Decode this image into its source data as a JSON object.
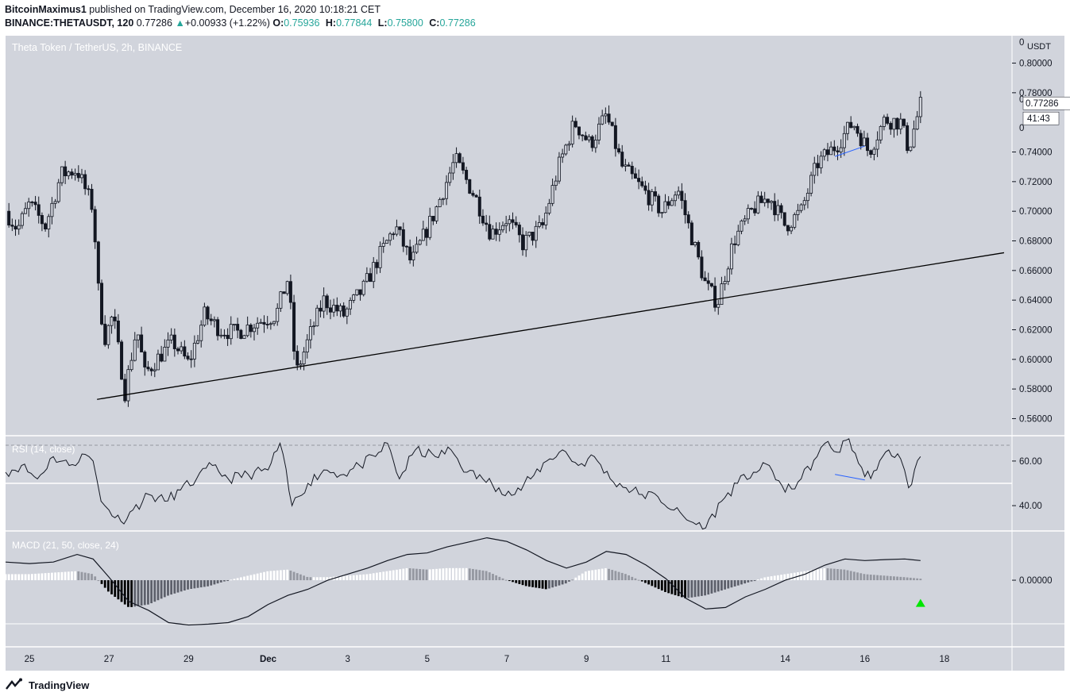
{
  "header": {
    "author": "BitcoinMaximus1",
    "published": "published on TradingView.com, December 16, 2020 10:18:21 CET",
    "symbol": "BINANCE:THETAUSDT, 120",
    "last": "0.77286",
    "change": "+0.00933 (+1.22%)",
    "open_label": "O:",
    "open": "0.75936",
    "high_label": "H:",
    "high": "0.77844",
    "low_label": "L:",
    "low": "0.75800",
    "close_label": "C:",
    "close": "0.77286"
  },
  "colors": {
    "pane_bg": "#d1d4dc",
    "candle": "#131722",
    "up_text": "#26a69a",
    "trendline": "#000000",
    "divergence": "#2962ff",
    "arrow": "#00e600"
  },
  "footer": {
    "brand": "TradingView",
    "icon": "tradingview-logo-icon"
  },
  "chart_data": [
    {
      "type": "candlestick",
      "title": "Theta Token / TetherUS, 2h, BINANCE",
      "currency": "USDT",
      "y_ticks": [
        "0.80000",
        "0.78000",
        "0.74000",
        "0.72000",
        "0.70000",
        "0.68000",
        "0.66000",
        "0.64000",
        "0.62000",
        "0.60000",
        "0.58000",
        "0.56000"
      ],
      "ylim": [
        0.549,
        0.8185
      ],
      "last_price_label": "0.77286",
      "countdown_label": "41:43",
      "axis_fragments": [
        "0",
        "0",
        "0"
      ],
      "grid": false,
      "x_ticks": [
        "25",
        "27",
        "29",
        "Dec",
        "3",
        "5",
        "7",
        "9",
        "11",
        "14",
        "16",
        "18"
      ],
      "x_tick_days": [
        -6,
        -4,
        -2,
        0,
        2,
        4,
        6,
        8,
        10,
        13,
        15,
        17
      ],
      "x_unit": "days from Dec 1, 2020",
      "xlim": [
        -6.6,
        18.7
      ],
      "swing_path": [
        [
          -6.6,
          0.7
        ],
        [
          -6.3,
          0.688
        ],
        [
          -6.0,
          0.705
        ],
        [
          -5.6,
          0.69
        ],
        [
          -5.2,
          0.725
        ],
        [
          -4.8,
          0.728
        ],
        [
          -4.4,
          0.702
        ],
        [
          -4.25,
          0.64
        ],
        [
          -4.1,
          0.615
        ],
        [
          -3.9,
          0.63
        ],
        [
          -3.6,
          0.578
        ],
        [
          -3.3,
          0.622
        ],
        [
          -3.1,
          0.59
        ],
        [
          -2.8,
          0.6
        ],
        [
          -2.4,
          0.612
        ],
        [
          -2.0,
          0.597
        ],
        [
          -1.6,
          0.63
        ],
        [
          -1.2,
          0.62
        ],
        [
          -0.8,
          0.618
        ],
        [
          -0.3,
          0.625
        ],
        [
          0.2,
          0.63
        ],
        [
          0.5,
          0.655
        ],
        [
          0.7,
          0.59
        ],
        [
          1.1,
          0.62
        ],
        [
          1.4,
          0.64
        ],
        [
          1.9,
          0.63
        ],
        [
          2.4,
          0.648
        ],
        [
          2.8,
          0.67
        ],
        [
          3.2,
          0.69
        ],
        [
          3.6,
          0.665
        ],
        [
          4.2,
          0.7
        ],
        [
          4.7,
          0.735
        ],
        [
          5.2,
          0.71
        ],
        [
          5.6,
          0.685
        ],
        [
          6.0,
          0.695
        ],
        [
          6.4,
          0.678
        ],
        [
          6.9,
          0.69
        ],
        [
          7.3,
          0.73
        ],
        [
          7.7,
          0.76
        ],
        [
          8.1,
          0.745
        ],
        [
          8.5,
          0.765
        ],
        [
          8.9,
          0.73
        ],
        [
          9.4,
          0.715
        ],
        [
          9.9,
          0.7
        ],
        [
          10.3,
          0.715
        ],
        [
          10.7,
          0.678
        ],
        [
          11.0,
          0.65
        ],
        [
          11.3,
          0.638
        ],
        [
          11.7,
          0.68
        ],
        [
          12.2,
          0.702
        ],
        [
          12.6,
          0.71
        ],
        [
          13.0,
          0.69
        ],
        [
          13.4,
          0.7
        ],
        [
          13.8,
          0.732
        ],
        [
          14.3,
          0.745
        ],
        [
          14.7,
          0.76
        ],
        [
          15.1,
          0.74
        ],
        [
          15.5,
          0.762
        ],
        [
          15.9,
          0.76
        ],
        [
          16.1,
          0.742
        ],
        [
          16.4,
          0.772
        ]
      ],
      "ascending_support_line": [
        [
          -4.3,
          0.573
        ],
        [
          18.5,
          0.672
        ]
      ],
      "divergence_line": [
        [
          14.25,
          0.737
        ],
        [
          15.0,
          0.744
        ]
      ]
    },
    {
      "type": "line",
      "title": "RSI (14, close)",
      "y_ticks": [
        "60.00",
        "40.00"
      ],
      "ylim": [
        29,
        71
      ],
      "reference_level": 50,
      "series_points": [
        [
          -6.6,
          55
        ],
        [
          -6.2,
          58
        ],
        [
          -5.8,
          52
        ],
        [
          -5.4,
          62
        ],
        [
          -5.0,
          58
        ],
        [
          -4.6,
          63
        ],
        [
          -4.4,
          60
        ],
        [
          -4.2,
          42
        ],
        [
          -4.0,
          38
        ],
        [
          -3.7,
          33
        ],
        [
          -3.4,
          38
        ],
        [
          -3.0,
          45
        ],
        [
          -2.6,
          42
        ],
        [
          -2.2,
          47
        ],
        [
          -1.8,
          52
        ],
        [
          -1.4,
          58
        ],
        [
          -1.0,
          52
        ],
        [
          -0.5,
          54
        ],
        [
          0.0,
          56
        ],
        [
          0.3,
          68
        ],
        [
          0.6,
          40
        ],
        [
          1.0,
          50
        ],
        [
          1.4,
          56
        ],
        [
          1.9,
          54
        ],
        [
          2.3,
          58
        ],
        [
          2.7,
          62
        ],
        [
          3.0,
          68
        ],
        [
          3.3,
          52
        ],
        [
          3.7,
          65
        ],
        [
          4.2,
          62
        ],
        [
          4.6,
          65
        ],
        [
          5.0,
          55
        ],
        [
          5.4,
          52
        ],
        [
          5.8,
          48
        ],
        [
          6.2,
          45
        ],
        [
          6.6,
          52
        ],
        [
          7.0,
          60
        ],
        [
          7.4,
          65
        ],
        [
          7.8,
          58
        ],
        [
          8.2,
          62
        ],
        [
          8.6,
          52
        ],
        [
          9.0,
          48
        ],
        [
          9.4,
          45
        ],
        [
          9.8,
          44
        ],
        [
          10.2,
          38
        ],
        [
          10.6,
          33
        ],
        [
          11.0,
          30
        ],
        [
          11.4,
          42
        ],
        [
          11.8,
          50
        ],
        [
          12.2,
          55
        ],
        [
          12.6,
          58
        ],
        [
          13.0,
          46
        ],
        [
          13.4,
          52
        ],
        [
          13.8,
          62
        ],
        [
          14.0,
          68
        ],
        [
          14.3,
          64
        ],
        [
          14.6,
          70
        ],
        [
          15.0,
          53
        ],
        [
          15.3,
          56
        ],
        [
          15.6,
          65
        ],
        [
          15.9,
          61
        ],
        [
          16.1,
          48
        ],
        [
          16.4,
          62
        ]
      ],
      "divergence_line": [
        [
          14.25,
          54.0
        ],
        [
          15.0,
          51.5
        ]
      ]
    },
    {
      "type": "line",
      "title": "MACD (21, 50, close, 24)",
      "y_ticks": [
        "0.00000"
      ],
      "ylim": [
        -0.022,
        0.016
      ],
      "series": [
        {
          "kind": "macd_line",
          "points": [
            [
              -6.6,
              0.006
            ],
            [
              -6.0,
              0.0055
            ],
            [
              -5.4,
              0.006
            ],
            [
              -4.8,
              0.0085
            ],
            [
              -4.4,
              0.007
            ],
            [
              -4.0,
              0.001
            ],
            [
              -3.5,
              -0.007
            ],
            [
              -3.0,
              -0.01
            ],
            [
              -2.5,
              -0.014
            ],
            [
              -2.0,
              -0.0148
            ],
            [
              -1.5,
              -0.0145
            ],
            [
              -1.0,
              -0.014
            ],
            [
              -0.5,
              -0.012
            ],
            [
              0.0,
              -0.008
            ],
            [
              0.5,
              -0.005
            ],
            [
              1.0,
              -0.003
            ],
            [
              1.5,
              0.0
            ],
            [
              2.0,
              0.002
            ],
            [
              2.5,
              0.004
            ],
            [
              3.0,
              0.0065
            ],
            [
              3.5,
              0.0085
            ],
            [
              4.0,
              0.009
            ],
            [
              4.5,
              0.011
            ],
            [
              5.0,
              0.0125
            ],
            [
              5.5,
              0.014
            ],
            [
              6.0,
              0.0128
            ],
            [
              6.5,
              0.01
            ],
            [
              7.0,
              0.0065
            ],
            [
              7.5,
              0.004
            ],
            [
              8.0,
              0.006
            ],
            [
              8.5,
              0.0095
            ],
            [
              9.0,
              0.0085
            ],
            [
              9.5,
              0.005
            ],
            [
              10.0,
              0.0005
            ],
            [
              10.5,
              -0.006
            ],
            [
              11.0,
              -0.0095
            ],
            [
              11.5,
              -0.009
            ],
            [
              12.0,
              -0.0055
            ],
            [
              12.5,
              -0.003
            ],
            [
              13.0,
              0.0
            ],
            [
              13.5,
              0.002
            ],
            [
              14.0,
              0.005
            ],
            [
              14.5,
              0.007
            ],
            [
              15.0,
              0.0065
            ],
            [
              15.5,
              0.0068
            ],
            [
              16.0,
              0.007
            ],
            [
              16.4,
              0.0065
            ]
          ]
        },
        {
          "kind": "histogram",
          "points": [
            [
              -6.6,
              0.002
            ],
            [
              -6.0,
              0.002
            ],
            [
              -5.4,
              0.0025
            ],
            [
              -4.8,
              0.003
            ],
            [
              -4.4,
              0.002
            ],
            [
              -4.0,
              -0.004
            ],
            [
              -3.5,
              -0.009
            ],
            [
              -3.0,
              -0.008
            ],
            [
              -2.5,
              -0.005
            ],
            [
              -2.0,
              -0.003
            ],
            [
              -1.5,
              -0.002
            ],
            [
              -1.0,
              0.0
            ],
            [
              -0.5,
              0.0015
            ],
            [
              0.0,
              0.003
            ],
            [
              0.5,
              0.0035
            ],
            [
              1.0,
              0.001
            ],
            [
              1.5,
              0.001
            ],
            [
              2.0,
              0.0015
            ],
            [
              2.5,
              0.002
            ],
            [
              3.0,
              0.003
            ],
            [
              3.5,
              0.004
            ],
            [
              4.0,
              0.0035
            ],
            [
              4.5,
              0.004
            ],
            [
              5.0,
              0.004
            ],
            [
              5.5,
              0.003
            ],
            [
              6.0,
              0.0
            ],
            [
              6.5,
              -0.002
            ],
            [
              7.0,
              -0.003
            ],
            [
              7.5,
              -0.001
            ],
            [
              8.0,
              0.003
            ],
            [
              8.5,
              0.004
            ],
            [
              9.0,
              0.002
            ],
            [
              9.5,
              -0.001
            ],
            [
              10.0,
              -0.004
            ],
            [
              10.5,
              -0.006
            ],
            [
              11.0,
              -0.005
            ],
            [
              11.5,
              -0.003
            ],
            [
              12.0,
              -0.001
            ],
            [
              12.5,
              0.001
            ],
            [
              13.0,
              0.002
            ],
            [
              13.5,
              0.003
            ],
            [
              14.0,
              0.004
            ],
            [
              14.5,
              0.0035
            ],
            [
              15.0,
              0.002
            ],
            [
              15.5,
              0.0015
            ],
            [
              16.0,
              0.001
            ],
            [
              16.4,
              0.0005
            ]
          ]
        }
      ],
      "buy_arrow_at": [
        16.4,
        -0.0075
      ]
    }
  ]
}
